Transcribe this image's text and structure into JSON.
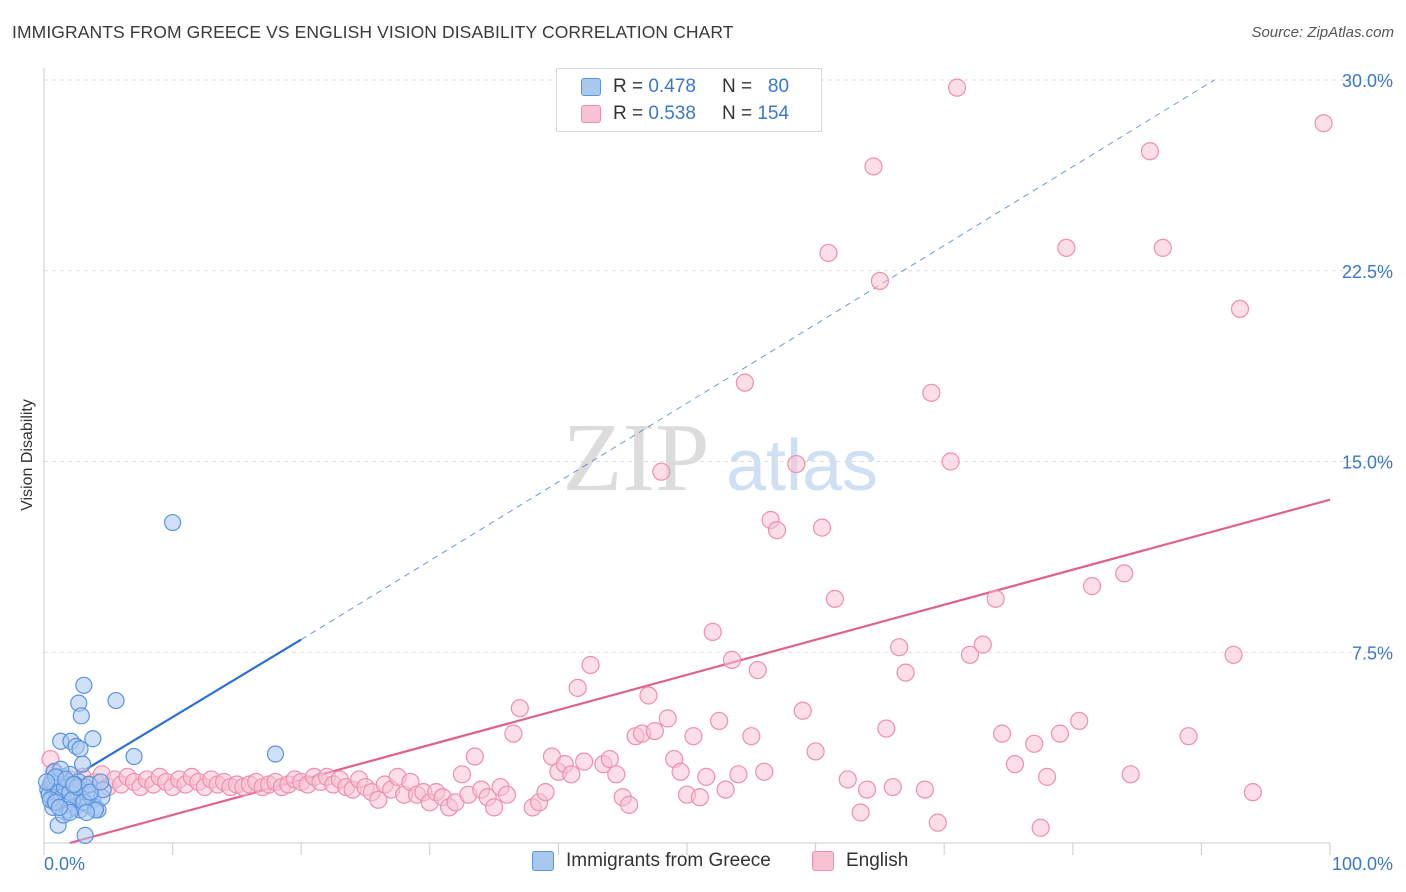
{
  "title": "IMMIGRANTS FROM GREECE VS ENGLISH VISION DISABILITY CORRELATION CHART",
  "source": "Source: ZipAtlas.com",
  "watermark": {
    "zip": "ZIP",
    "atlas": "atlas"
  },
  "legend_top": [
    {
      "r_label": "R =",
      "r_value": "0.478",
      "n_label": "N =",
      "n_value": "80"
    },
    {
      "r_label": "R =",
      "r_value": "0.538",
      "n_label": "N =",
      "n_value": "154"
    }
  ],
  "legend_bottom": [
    "Immigrants from Greece",
    "English"
  ],
  "colors": {
    "blue_fill": "#a9c8f0",
    "blue_stroke": "#5b93dd",
    "blue_line": "#2a6fd0",
    "pink_fill": "#f7c3d3",
    "pink_stroke": "#ee8fad",
    "pink_line": "#e0608e",
    "tick_text": "#3a78c8",
    "grid": "#dddddd"
  },
  "chart_data": {
    "type": "scatter",
    "title": "IMMIGRANTS FROM GREECE VS ENGLISH VISION DISABILITY CORRELATION CHART",
    "xlabel": "",
    "ylabel": "Vision Disability",
    "xlim": [
      0,
      100
    ],
    "ylim": [
      0,
      30
    ],
    "x_tick_labels": [
      "0.0%",
      "100.0%"
    ],
    "y_ticks": [
      7.5,
      15.0,
      22.5,
      30.0
    ],
    "y_tick_labels": [
      "7.5%",
      "15.0%",
      "22.5%",
      "30.0%"
    ],
    "grid": "horizontal dashed",
    "series": [
      {
        "name": "Immigrants from Greece",
        "r": 0.478,
        "n": 80,
        "trend": {
          "x0": 0,
          "y0": 1.9,
          "x1": 20,
          "y1": 8.0,
          "dashed_to_x": 91,
          "dashed_to_y": 30.0
        },
        "points": [
          [
            0.3,
            2.1
          ],
          [
            0.5,
            2.3
          ],
          [
            0.6,
            1.8
          ],
          [
            0.7,
            2.5
          ],
          [
            0.8,
            1.6
          ],
          [
            0.9,
            2.0
          ],
          [
            1.0,
            2.2
          ],
          [
            1.1,
            1.9
          ],
          [
            1.2,
            2.4
          ],
          [
            1.3,
            1.7
          ],
          [
            1.4,
            2.1
          ],
          [
            1.5,
            2.6
          ],
          [
            1.6,
            1.5
          ],
          [
            1.7,
            2.0
          ],
          [
            1.8,
            2.3
          ],
          [
            1.9,
            1.8
          ],
          [
            2.0,
            2.7
          ],
          [
            2.1,
            1.6
          ],
          [
            2.2,
            2.2
          ],
          [
            2.3,
            1.9
          ],
          [
            2.4,
            1.4
          ],
          [
            2.5,
            2.1
          ],
          [
            2.6,
            1.7
          ],
          [
            2.7,
            2.4
          ],
          [
            2.8,
            1.3
          ],
          [
            2.9,
            2.0
          ],
          [
            3.0,
            1.8
          ],
          [
            3.2,
            2.2
          ],
          [
            3.4,
            1.5
          ],
          [
            3.6,
            1.9
          ],
          [
            3.8,
            1.7
          ],
          [
            4.0,
            1.4
          ],
          [
            4.2,
            1.3
          ],
          [
            4.5,
            1.8
          ],
          [
            0.4,
            1.9
          ],
          [
            0.6,
            2.4
          ],
          [
            0.8,
            2.8
          ],
          [
            1.0,
            1.6
          ],
          [
            1.2,
            2.0
          ],
          [
            1.4,
            1.8
          ],
          [
            1.6,
            2.2
          ],
          [
            1.8,
            1.5
          ],
          [
            2.0,
            2.0
          ],
          [
            2.2,
            1.7
          ],
          [
            2.4,
            2.3
          ],
          [
            1.3,
            2.9
          ],
          [
            0.9,
            2.6
          ],
          [
            1.7,
            2.5
          ],
          [
            2.6,
            2.2
          ],
          [
            3.1,
            1.6
          ],
          [
            1.3,
            4.0
          ],
          [
            2.1,
            4.0
          ],
          [
            2.5,
            3.8
          ],
          [
            2.8,
            3.7
          ],
          [
            2.7,
            5.5
          ],
          [
            2.9,
            5.0
          ],
          [
            3.1,
            6.2
          ],
          [
            3.0,
            3.1
          ],
          [
            3.8,
            4.1
          ],
          [
            5.6,
            5.6
          ],
          [
            7.0,
            3.4
          ],
          [
            1.1,
            0.7
          ],
          [
            3.2,
            0.3
          ],
          [
            4.0,
            1.3
          ],
          [
            4.6,
            2.1
          ],
          [
            3.5,
            2.3
          ],
          [
            2.3,
            2.3
          ],
          [
            1.9,
            1.3
          ],
          [
            0.7,
            1.4
          ],
          [
            0.5,
            1.7
          ],
          [
            3.6,
            2.0
          ],
          [
            4.4,
            2.4
          ],
          [
            0.2,
            2.4
          ],
          [
            1.5,
            1.1
          ],
          [
            2.0,
            1.2
          ],
          [
            3.3,
            1.2
          ],
          [
            0.9,
            1.6
          ],
          [
            1.2,
            1.4
          ],
          [
            10.0,
            12.6
          ],
          [
            18.0,
            3.5
          ]
        ]
      },
      {
        "name": "English",
        "r": 0.538,
        "n": 154,
        "trend": {
          "x0": 2,
          "y0": 0,
          "x1": 100,
          "y1": 13.5
        },
        "points": [
          [
            0.5,
            3.3
          ],
          [
            0.8,
            2.8
          ],
          [
            1.2,
            2.6
          ],
          [
            1.5,
            2.3
          ],
          [
            2.0,
            2.5
          ],
          [
            2.5,
            2.2
          ],
          [
            3.0,
            2.6
          ],
          [
            3.5,
            2.3
          ],
          [
            4.0,
            2.4
          ],
          [
            4.5,
            2.7
          ],
          [
            5.0,
            2.2
          ],
          [
            5.5,
            2.5
          ],
          [
            6.0,
            2.3
          ],
          [
            6.5,
            2.6
          ],
          [
            7.0,
            2.4
          ],
          [
            7.5,
            2.2
          ],
          [
            8.0,
            2.5
          ],
          [
            8.5,
            2.3
          ],
          [
            9.0,
            2.6
          ],
          [
            9.5,
            2.4
          ],
          [
            10.0,
            2.2
          ],
          [
            10.5,
            2.5
          ],
          [
            11.0,
            2.3
          ],
          [
            11.5,
            2.6
          ],
          [
            12.0,
            2.4
          ],
          [
            12.5,
            2.2
          ],
          [
            13.0,
            2.5
          ],
          [
            13.5,
            2.3
          ],
          [
            14.0,
            2.4
          ],
          [
            14.5,
            2.2
          ],
          [
            15.0,
            2.3
          ],
          [
            15.5,
            2.2
          ],
          [
            16.0,
            2.3
          ],
          [
            16.5,
            2.4
          ],
          [
            17.0,
            2.2
          ],
          [
            17.5,
            2.3
          ],
          [
            18.0,
            2.4
          ],
          [
            18.5,
            2.2
          ],
          [
            19.0,
            2.3
          ],
          [
            19.5,
            2.5
          ],
          [
            20.0,
            2.4
          ],
          [
            20.5,
            2.3
          ],
          [
            21.0,
            2.6
          ],
          [
            21.5,
            2.4
          ],
          [
            22.0,
            2.6
          ],
          [
            22.5,
            2.3
          ],
          [
            23.0,
            2.5
          ],
          [
            23.5,
            2.2
          ],
          [
            24.0,
            2.1
          ],
          [
            24.5,
            2.5
          ],
          [
            25.0,
            2.2
          ],
          [
            25.5,
            2.0
          ],
          [
            26.0,
            1.7
          ],
          [
            26.5,
            2.3
          ],
          [
            27.0,
            2.1
          ],
          [
            27.5,
            2.6
          ],
          [
            28.0,
            1.9
          ],
          [
            28.5,
            2.4
          ],
          [
            29.0,
            1.9
          ],
          [
            29.5,
            2.0
          ],
          [
            30.0,
            1.6
          ],
          [
            30.5,
            2.0
          ],
          [
            31.0,
            1.8
          ],
          [
            31.5,
            1.4
          ],
          [
            32.0,
            1.6
          ],
          [
            32.5,
            2.7
          ],
          [
            33.0,
            1.9
          ],
          [
            33.5,
            3.4
          ],
          [
            34.0,
            2.1
          ],
          [
            34.5,
            1.8
          ],
          [
            35.0,
            1.4
          ],
          [
            35.5,
            2.2
          ],
          [
            36.0,
            1.9
          ],
          [
            36.5,
            4.3
          ],
          [
            37.0,
            5.3
          ],
          [
            38.0,
            1.4
          ],
          [
            38.5,
            1.6
          ],
          [
            39.0,
            2.0
          ],
          [
            39.5,
            3.4
          ],
          [
            40.0,
            2.8
          ],
          [
            40.5,
            3.1
          ],
          [
            41.0,
            2.7
          ],
          [
            41.5,
            6.1
          ],
          [
            42.0,
            3.2
          ],
          [
            42.5,
            7.0
          ],
          [
            43.5,
            3.1
          ],
          [
            44.0,
            3.3
          ],
          [
            44.5,
            2.7
          ],
          [
            45.0,
            1.8
          ],
          [
            45.5,
            1.5
          ],
          [
            46.0,
            4.2
          ],
          [
            46.5,
            4.3
          ],
          [
            47.0,
            5.8
          ],
          [
            47.5,
            4.4
          ],
          [
            48.0,
            14.6
          ],
          [
            48.5,
            4.9
          ],
          [
            49.0,
            3.3
          ],
          [
            49.5,
            2.8
          ],
          [
            50.0,
            1.9
          ],
          [
            50.5,
            4.2
          ],
          [
            51.0,
            1.8
          ],
          [
            51.5,
            2.6
          ],
          [
            52.0,
            8.3
          ],
          [
            52.5,
            4.8
          ],
          [
            53.0,
            2.1
          ],
          [
            53.5,
            7.2
          ],
          [
            54.0,
            2.7
          ],
          [
            54.5,
            18.1
          ],
          [
            55.0,
            4.2
          ],
          [
            55.5,
            6.8
          ],
          [
            56.0,
            2.8
          ],
          [
            56.5,
            12.7
          ],
          [
            57.0,
            12.3
          ],
          [
            58.5,
            14.9
          ],
          [
            59.0,
            5.2
          ],
          [
            60.0,
            3.6
          ],
          [
            60.5,
            12.4
          ],
          [
            61.0,
            23.2
          ],
          [
            61.5,
            9.6
          ],
          [
            62.5,
            2.5
          ],
          [
            63.5,
            1.2
          ],
          [
            64.0,
            2.1
          ],
          [
            64.5,
            26.6
          ],
          [
            65.0,
            22.1
          ],
          [
            65.5,
            4.5
          ],
          [
            66.0,
            2.2
          ],
          [
            66.5,
            7.7
          ],
          [
            67.0,
            6.7
          ],
          [
            68.5,
            2.1
          ],
          [
            69.0,
            17.7
          ],
          [
            69.5,
            0.8
          ],
          [
            70.5,
            15.0
          ],
          [
            71.0,
            29.7
          ],
          [
            72.0,
            7.4
          ],
          [
            73.0,
            7.8
          ],
          [
            74.0,
            9.6
          ],
          [
            74.5,
            4.3
          ],
          [
            75.5,
            3.1
          ],
          [
            77.0,
            3.9
          ],
          [
            77.5,
            0.6
          ],
          [
            78.0,
            2.6
          ],
          [
            79.0,
            4.3
          ],
          [
            79.5,
            23.4
          ],
          [
            80.5,
            4.8
          ],
          [
            81.5,
            10.1
          ],
          [
            84.0,
            10.6
          ],
          [
            84.5,
            2.7
          ],
          [
            86.0,
            27.2
          ],
          [
            87.0,
            23.4
          ],
          [
            89.0,
            4.2
          ],
          [
            92.5,
            7.4
          ],
          [
            93.0,
            21.0
          ],
          [
            94.0,
            2.0
          ],
          [
            99.5,
            28.3
          ]
        ]
      }
    ]
  }
}
